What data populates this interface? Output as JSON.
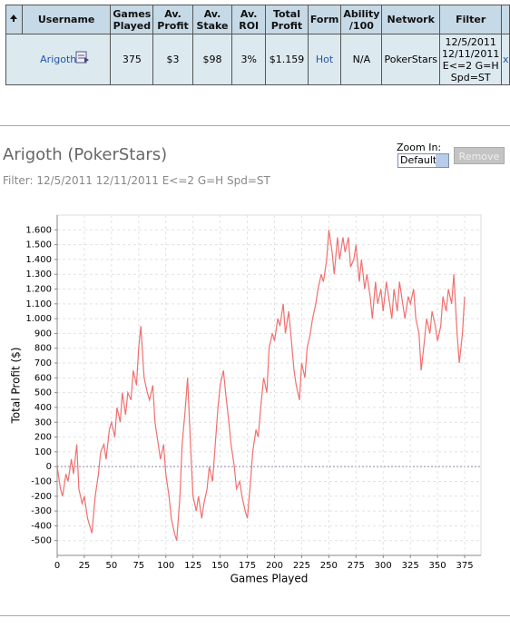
{
  "table": {
    "headers": [
      "Username",
      "Games Played",
      "Av. Profit",
      "Av. Stake",
      "Av. ROI",
      "Total Profit",
      "Form",
      "Ability /100",
      "Network",
      "Filter"
    ],
    "rows": [
      [
        "Arigoth",
        "375",
        "$3",
        "$98",
        "3%",
        "$1.159",
        "Hot",
        "N/A",
        "PokerStars",
        "12/5/2011 12/11/2011 E<=2 G=H Spd=ST",
        "x"
      ]
    ]
  },
  "panel": {
    "title": "Arigoth (PokerStars)",
    "filter": "Filter: 12/5/2011 12/11/2011 E<=2 G=H Spd=ST",
    "zoom_label": "Zoom In:",
    "zoom_value": "Default",
    "remove_button": "Remove"
  },
  "chart_data": {
    "type": "line",
    "xlabel": "Games Played",
    "ylabel": "Total Profit ($)",
    "color": "#f07070",
    "grid": true,
    "x": [
      0,
      3,
      5,
      8,
      10,
      13,
      15,
      18,
      20,
      23,
      25,
      28,
      32,
      35,
      38,
      40,
      43,
      45,
      48,
      50,
      53,
      55,
      58,
      60,
      63,
      65,
      68,
      70,
      73,
      75,
      77,
      80,
      83,
      85,
      88,
      90,
      93,
      95,
      98,
      100,
      103,
      105,
      108,
      110,
      113,
      115,
      118,
      120,
      123,
      125,
      128,
      130,
      133,
      135,
      138,
      140,
      143,
      145,
      148,
      150,
      153,
      155,
      158,
      160,
      163,
      165,
      168,
      170,
      173,
      175,
      178,
      180,
      183,
      185,
      188,
      190,
      193,
      195,
      198,
      200,
      203,
      205,
      208,
      210,
      213,
      215,
      218,
      220,
      223,
      225,
      228,
      230,
      233,
      235,
      238,
      240,
      243,
      245,
      248,
      250,
      253,
      255,
      258,
      260,
      263,
      265,
      268,
      270,
      273,
      275,
      278,
      280,
      283,
      285,
      288,
      290,
      293,
      295,
      298,
      300,
      303,
      305,
      308,
      310,
      313,
      315,
      318,
      320,
      323,
      325,
      328,
      330,
      333,
      335,
      338,
      340,
      343,
      345,
      348,
      350,
      353,
      355,
      358,
      360,
      363,
      365,
      368,
      370,
      373,
      375
    ],
    "values": [
      0,
      -150,
      -200,
      -50,
      -100,
      50,
      -50,
      150,
      -150,
      -250,
      -200,
      -350,
      -450,
      -200,
      -50,
      100,
      150,
      50,
      250,
      300,
      200,
      400,
      300,
      500,
      350,
      500,
      450,
      650,
      550,
      800,
      950,
      600,
      500,
      450,
      550,
      300,
      150,
      50,
      150,
      -50,
      -200,
      -350,
      -450,
      -500,
      -200,
      150,
      400,
      600,
      100,
      -200,
      -300,
      -200,
      -350,
      -250,
      -150,
      0,
      -100,
      100,
      400,
      550,
      650,
      500,
      300,
      150,
      0,
      -150,
      -100,
      -200,
      -300,
      -350,
      -100,
      100,
      250,
      200,
      450,
      600,
      500,
      800,
      900,
      850,
      1000,
      950,
      1100,
      900,
      1050,
      900,
      650,
      550,
      450,
      700,
      600,
      800,
      900,
      1000,
      1100,
      1200,
      1300,
      1250,
      1400,
      1600,
      1450,
      1300,
      1550,
      1400,
      1550,
      1450,
      1550,
      1350,
      1400,
      1500,
      1250,
      1400,
      1200,
      1300,
      1150,
      1000,
      1250,
      1100,
      1200,
      1050,
      1250,
      1150,
      1000,
      1200,
      1050,
      1250,
      1100,
      1000,
      1150,
      1100,
      1200,
      1000,
      900,
      650,
      850,
      1000,
      900,
      1050,
      950,
      850,
      950,
      1150,
      1050,
      1200,
      1100,
      1300,
      900,
      700,
      900,
      1150
    ],
    "xlim": [
      0,
      390
    ],
    "xticks": [
      0,
      25,
      50,
      75,
      100,
      125,
      150,
      175,
      200,
      225,
      250,
      275,
      300,
      325,
      350,
      375
    ],
    "ylim": [
      -600,
      1700
    ],
    "yticks": [
      -500,
      -400,
      -300,
      -200,
      -100,
      0,
      100,
      200,
      300,
      400,
      500,
      600,
      700,
      800,
      900,
      {
        "value": 1000,
        "label": "1.000"
      },
      {
        "value": 1100,
        "label": "1.100"
      },
      {
        "value": 1200,
        "label": "1.200"
      },
      {
        "value": 1300,
        "label": "1.300"
      },
      {
        "value": 1400,
        "label": "1.400"
      },
      {
        "value": 1500,
        "label": "1.500"
      },
      {
        "value": 1600,
        "label": "1.600"
      }
    ]
  }
}
